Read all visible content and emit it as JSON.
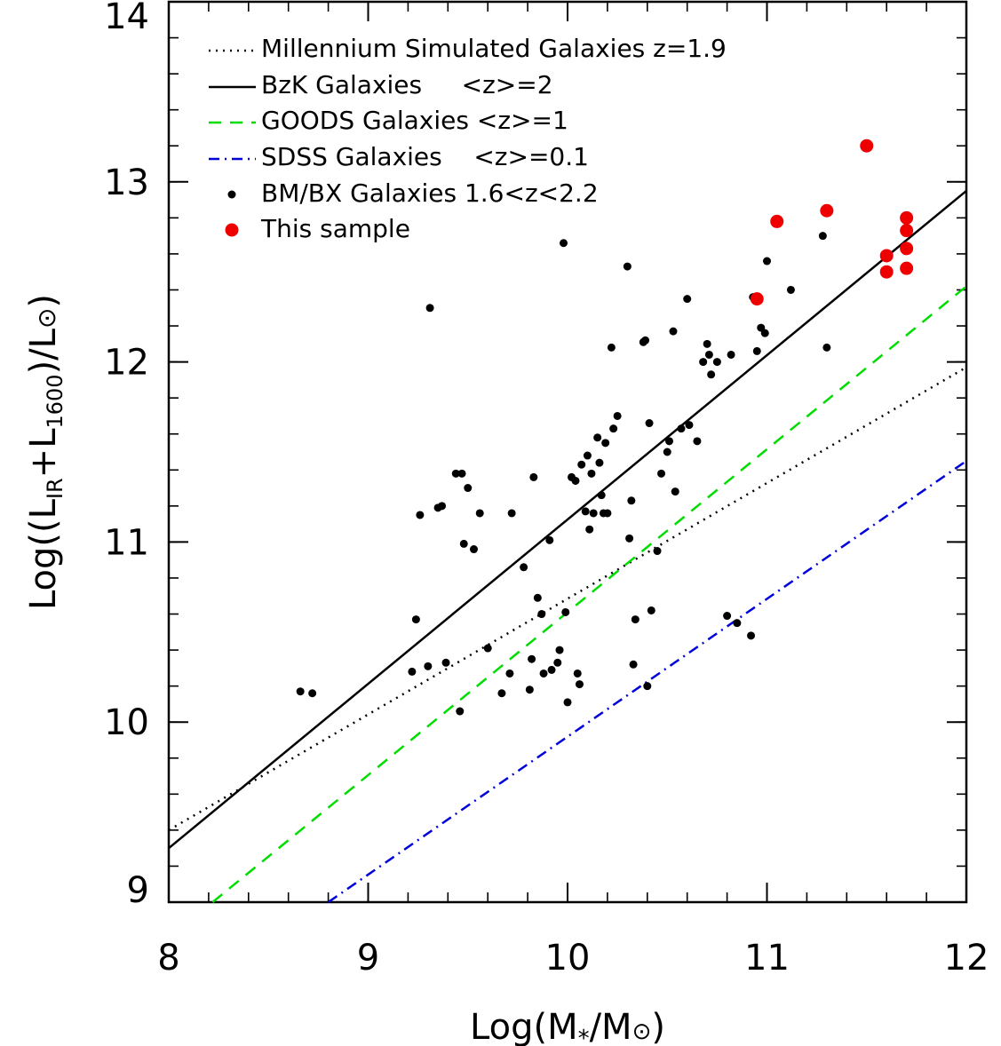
{
  "chart_data": {
    "type": "scatter",
    "xlabel": "Log(M*/M⊙)",
    "ylabel": "Log((LIR+L1600)/L⊙)",
    "xlim": [
      8,
      12
    ],
    "ylim": [
      9,
      14
    ],
    "xticks": [
      8,
      9,
      10,
      11,
      12
    ],
    "yticks": [
      9,
      10,
      11,
      12,
      13,
      14
    ],
    "x_minor_step": 0.2,
    "y_minor_step": 0.2,
    "grid": false,
    "legend_position": "top-left",
    "lines": [
      {
        "name": "Millennium Simulated Galaxies z=1.9",
        "style": "dotted",
        "color": "#000000",
        "x": [
          8,
          12
        ],
        "y": [
          9.4,
          11.97
        ]
      },
      {
        "name": "BzK Galaxies     <z>=2",
        "style": "solid",
        "color": "#000000",
        "x": [
          8,
          12
        ],
        "y": [
          9.3,
          12.95
        ]
      },
      {
        "name": "GOODS Galaxies <z>=1",
        "style": "dashed",
        "color": "#00dd00",
        "x": [
          8.22,
          12
        ],
        "y": [
          9.0,
          12.42
        ]
      },
      {
        "name": "SDSS Galaxies    <z>=0.1",
        "style": "dashdot",
        "color": "#0000dd",
        "x": [
          8.8,
          12
        ],
        "y": [
          9.0,
          11.45
        ]
      }
    ],
    "scatter_series": [
      {
        "name": "BM/BX Galaxies 1.6<z<2.2",
        "color": "#000000",
        "marker": "small-circle",
        "x": [
          8.66,
          8.72,
          9.22,
          9.24,
          9.26,
          9.3,
          9.31,
          9.35,
          9.37,
          9.39,
          9.44,
          9.46,
          9.47,
          9.48,
          9.5,
          9.53,
          9.56,
          9.6,
          9.67,
          9.71,
          9.72,
          9.78,
          9.81,
          9.82,
          9.83,
          9.85,
          9.87,
          9.88,
          9.91,
          9.92,
          9.95,
          9.96,
          9.98,
          9.99,
          10.0,
          10.02,
          10.04,
          10.05,
          10.06,
          10.07,
          10.09,
          10.1,
          10.11,
          10.12,
          10.13,
          10.15,
          10.16,
          10.17,
          10.18,
          10.19,
          10.2,
          10.22,
          10.23,
          10.25,
          10.3,
          10.31,
          10.32,
          10.33,
          10.34,
          10.38,
          10.39,
          10.4,
          10.41,
          10.42,
          10.45,
          10.47,
          10.5,
          10.51,
          10.53,
          10.54,
          10.57,
          10.6,
          10.61,
          10.65,
          10.68,
          10.7,
          10.71,
          10.72,
          10.75,
          10.8,
          10.82,
          10.85,
          10.92,
          10.93,
          10.95,
          10.97,
          10.99,
          11.0,
          11.12,
          11.28,
          11.3
        ],
        "y": [
          10.17,
          10.16,
          10.28,
          10.57,
          11.15,
          10.31,
          12.3,
          11.19,
          11.2,
          10.33,
          11.38,
          10.06,
          11.38,
          10.99,
          11.3,
          10.96,
          11.16,
          10.41,
          10.16,
          10.27,
          11.16,
          10.86,
          10.18,
          10.35,
          11.36,
          10.69,
          10.6,
          10.27,
          11.01,
          10.29,
          10.33,
          10.4,
          12.66,
          10.61,
          10.11,
          11.36,
          11.34,
          10.27,
          10.21,
          11.43,
          11.17,
          11.48,
          11.07,
          11.38,
          11.16,
          11.58,
          11.44,
          11.26,
          11.16,
          11.55,
          11.16,
          12.08,
          11.63,
          11.7,
          12.53,
          11.02,
          11.23,
          10.32,
          10.57,
          12.11,
          12.12,
          10.2,
          11.66,
          10.62,
          10.95,
          11.38,
          11.5,
          11.56,
          12.17,
          11.28,
          11.63,
          12.35,
          11.65,
          11.56,
          12.0,
          12.1,
          12.04,
          11.93,
          12.0,
          10.59,
          12.04,
          10.55,
          10.48,
          12.36,
          12.06,
          12.19,
          12.16,
          12.56,
          12.4,
          12.7,
          12.08
        ]
      },
      {
        "name": "This sample",
        "color": "#ee0000",
        "marker": "large-circle",
        "x": [
          10.95,
          11.05,
          11.3,
          11.5,
          11.6,
          11.6,
          11.7,
          11.7,
          11.7,
          11.7
        ],
        "y": [
          12.35,
          12.78,
          12.84,
          13.2,
          12.59,
          12.5,
          12.8,
          12.73,
          12.63,
          12.52
        ]
      }
    ]
  }
}
